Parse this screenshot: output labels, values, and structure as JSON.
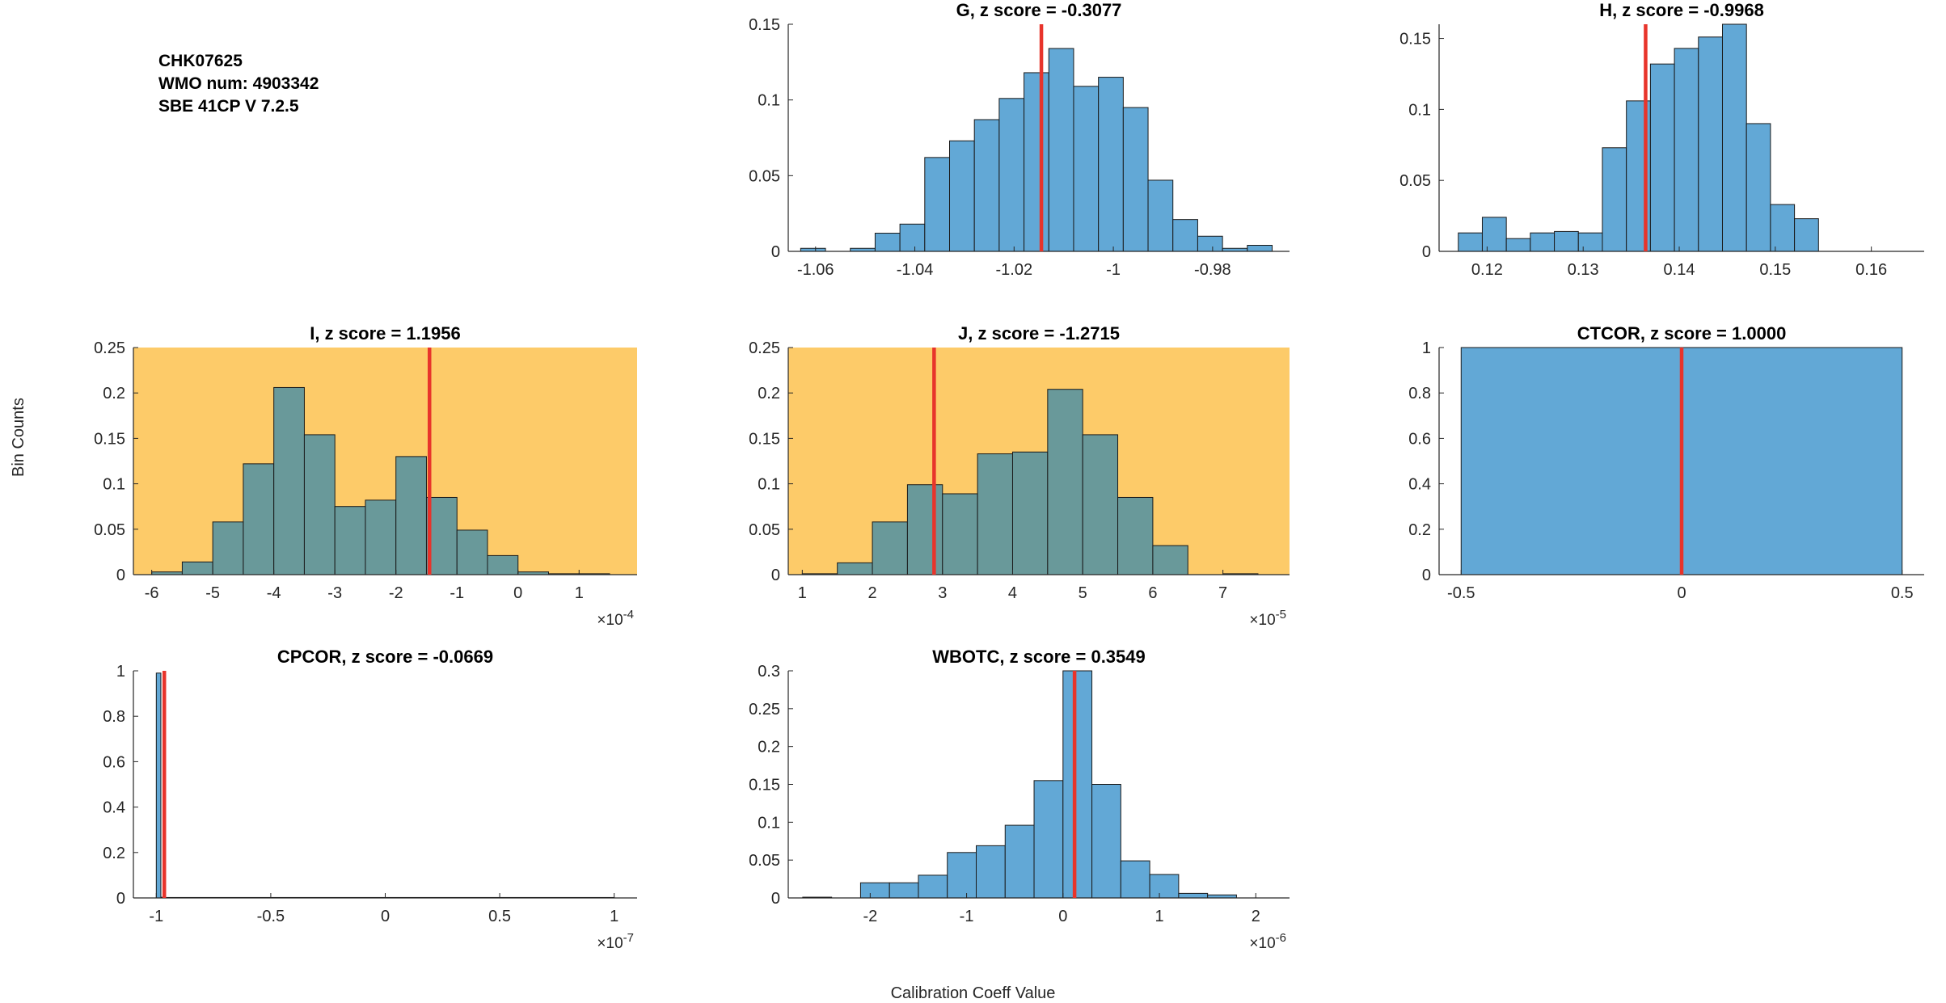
{
  "header": {
    "line1": "CHK07625",
    "line2": "WMO num: 4903342",
    "line3": "SBE 41CP V 7.2.5"
  },
  "figure": {
    "ylabel": "Bin Counts",
    "xlabel": "Calibration Coeff Value"
  },
  "colors": {
    "bar_fill": "#62a8d6",
    "bar_fill_on_highlight": "#69999a",
    "highlight_bg": "#fdcb69",
    "marker": "#e8342b",
    "axis": "#262626"
  },
  "chart_data": [
    {
      "id": "G",
      "type": "bar",
      "title": "G, z score = -0.3077",
      "highlight": false,
      "xlim": [
        -1.0655,
        -0.9645
      ],
      "ylim": [
        0,
        0.15
      ],
      "xticks": [
        -1.06,
        -1.04,
        -1.02,
        -1.0,
        -0.98
      ],
      "xtick_labels": [
        "-1.06",
        "-1.04",
        "-1.02",
        "-1",
        "-0.98"
      ],
      "yticks": [
        0,
        0.05,
        0.1,
        0.15
      ],
      "ytick_labels": [
        "0",
        "0.05",
        "0.1",
        "0.15"
      ],
      "exponent": "",
      "bin_edges": [
        -1.063,
        -1.058,
        -1.053,
        -1.048,
        -1.043,
        -1.038,
        -1.033,
        -1.028,
        -1.023,
        -1.018,
        -1.013,
        -1.008,
        -1.003,
        -0.998,
        -0.993,
        -0.988,
        -0.983,
        -0.978,
        -0.973,
        -0.968
      ],
      "values": [
        0.002,
        0.0,
        0.002,
        0.012,
        0.018,
        0.062,
        0.073,
        0.087,
        0.101,
        0.118,
        0.134,
        0.109,
        0.115,
        0.095,
        0.047,
        0.021,
        0.01,
        0.002,
        0.004
      ],
      "marker_x": -1.0145
    },
    {
      "id": "H",
      "type": "bar",
      "title": "H, z score = -0.9968",
      "highlight": false,
      "xlim": [
        0.115,
        0.1655
      ],
      "ylim": [
        0,
        0.16
      ],
      "xticks": [
        0.12,
        0.13,
        0.14,
        0.15,
        0.16
      ],
      "xtick_labels": [
        "0.12",
        "0.13",
        "0.14",
        "0.15",
        "0.16"
      ],
      "yticks": [
        0,
        0.05,
        0.1,
        0.15
      ],
      "ytick_labels": [
        "0",
        "0.05",
        "0.1",
        "0.15"
      ],
      "exponent": "",
      "bin_edges": [
        0.117,
        0.1195,
        0.122,
        0.1245,
        0.127,
        0.1295,
        0.132,
        0.1345,
        0.137,
        0.1395,
        0.142,
        0.1445,
        0.147,
        0.1495,
        0.152,
        0.1545,
        0.157,
        0.1595,
        0.162
      ],
      "values": [
        0.013,
        0.024,
        0.009,
        0.013,
        0.014,
        0.013,
        0.073,
        0.106,
        0.132,
        0.143,
        0.151,
        0.16,
        0.09,
        0.033,
        0.023,
        0.0,
        0.0,
        0.0
      ],
      "marker_x": 0.1365
    },
    {
      "id": "I",
      "type": "bar",
      "title": "I, z score = 1.1956",
      "highlight": true,
      "xlim": [
        -6.3,
        1.95
      ],
      "ylim": [
        0,
        0.25
      ],
      "xticks": [
        -6,
        -5,
        -4,
        -3,
        -2,
        -1,
        0,
        1
      ],
      "xtick_labels": [
        "-6",
        "-5",
        "-4",
        "-3",
        "-2",
        "-1",
        "0",
        "1"
      ],
      "yticks": [
        0,
        0.05,
        0.1,
        0.15,
        0.2,
        0.25
      ],
      "ytick_labels": [
        "0",
        "0.05",
        "0.1",
        "0.15",
        "0.2",
        "0.25"
      ],
      "exponent_base": "×10",
      "exponent_power": "-4",
      "bin_edges": [
        -6.0,
        -5.5,
        -5.0,
        -4.5,
        -4.0,
        -3.5,
        -3.0,
        -2.5,
        -2.0,
        -1.5,
        -1.0,
        -0.5,
        0.0,
        0.5,
        1.0,
        1.5
      ],
      "values": [
        0.003,
        0.014,
        0.058,
        0.122,
        0.206,
        0.154,
        0.075,
        0.082,
        0.13,
        0.085,
        0.049,
        0.021,
        0.003,
        0.001,
        0.001
      ],
      "marker_x": -1.45
    },
    {
      "id": "J",
      "type": "bar",
      "title": "J, z score = -1.2715",
      "highlight": true,
      "xlim": [
        0.8,
        7.95
      ],
      "ylim": [
        0,
        0.25
      ],
      "xticks": [
        1,
        2,
        3,
        4,
        5,
        6,
        7
      ],
      "xtick_labels": [
        "1",
        "2",
        "3",
        "4",
        "5",
        "6",
        "7"
      ],
      "yticks": [
        0,
        0.05,
        0.1,
        0.15,
        0.2,
        0.25
      ],
      "ytick_labels": [
        "0",
        "0.05",
        "0.1",
        "0.15",
        "0.2",
        "0.25"
      ],
      "exponent_base": "×10",
      "exponent_power": "-5",
      "bin_edges": [
        1.0,
        1.5,
        2.0,
        2.5,
        3.0,
        3.5,
        4.0,
        4.5,
        5.0,
        5.5,
        6.0,
        6.5,
        7.0,
        7.5
      ],
      "values": [
        0.001,
        0.013,
        0.058,
        0.099,
        0.089,
        0.133,
        0.135,
        0.204,
        0.154,
        0.085,
        0.032,
        0.0,
        0.001
      ],
      "marker_x": 2.88
    },
    {
      "id": "CTCOR",
      "type": "bar",
      "title": "CTCOR, z score = 1.0000",
      "highlight": false,
      "xlim": [
        -0.55,
        0.55
      ],
      "ylim": [
        0,
        1
      ],
      "xticks": [
        -0.5,
        0,
        0.5
      ],
      "xtick_labels": [
        "-0.5",
        "0",
        "0.5"
      ],
      "yticks": [
        0,
        0.2,
        0.4,
        0.6,
        0.8,
        1
      ],
      "ytick_labels": [
        "0",
        "0.2",
        "0.4",
        "0.6",
        "0.8",
        "1"
      ],
      "exponent": "",
      "bin_edges": [
        -0.5,
        0.5
      ],
      "values": [
        1.0
      ],
      "marker_x": 0.0
    },
    {
      "id": "CPCOR",
      "type": "bar",
      "title": "CPCOR, z score = -0.0669",
      "highlight": false,
      "xlim": [
        -1.1,
        1.1
      ],
      "ylim": [
        0,
        1
      ],
      "xticks": [
        -1,
        -0.5,
        0,
        0.5,
        1
      ],
      "xtick_labels": [
        "-1",
        "-0.5",
        "0",
        "0.5",
        "1"
      ],
      "yticks": [
        0,
        0.2,
        0.4,
        0.6,
        0.8,
        1
      ],
      "ytick_labels": [
        "0",
        "0.2",
        "0.4",
        "0.6",
        "0.8",
        "1"
      ],
      "exponent_base": "×10",
      "exponent_power": "-7",
      "bin_edges": [
        -1.0,
        -0.98,
        -0.96,
        1.0
      ],
      "values": [
        0.99,
        0.003,
        0.002
      ],
      "marker_x": -0.965
    },
    {
      "id": "WBOTC",
      "type": "bar",
      "title": "WBOTC, z score = 0.3549",
      "highlight": false,
      "xlim": [
        -2.85,
        2.35
      ],
      "ylim": [
        0,
        0.3
      ],
      "xticks": [
        -2,
        -1,
        0,
        1,
        2
      ],
      "xtick_labels": [
        "-2",
        "-1",
        "0",
        "1",
        "2"
      ],
      "yticks": [
        0,
        0.05,
        0.1,
        0.15,
        0.2,
        0.25,
        0.3
      ],
      "ytick_labels": [
        "0",
        "0.05",
        "0.1",
        "0.15",
        "0.2",
        "0.25",
        "0.3"
      ],
      "exponent_base": "×10",
      "exponent_power": "-6",
      "bin_edges": [
        -2.7,
        -2.4,
        -2.1,
        -1.8,
        -1.5,
        -1.2,
        -0.9,
        -0.6,
        -0.3,
        0.0,
        0.3,
        0.6,
        0.9,
        1.2,
        1.5,
        1.8,
        2.1
      ],
      "values": [
        0.001,
        0.0,
        0.02,
        0.02,
        0.03,
        0.06,
        0.069,
        0.096,
        0.155,
        0.3,
        0.15,
        0.049,
        0.031,
        0.006,
        0.004,
        0.0
      ],
      "marker_x": 0.12
    }
  ]
}
